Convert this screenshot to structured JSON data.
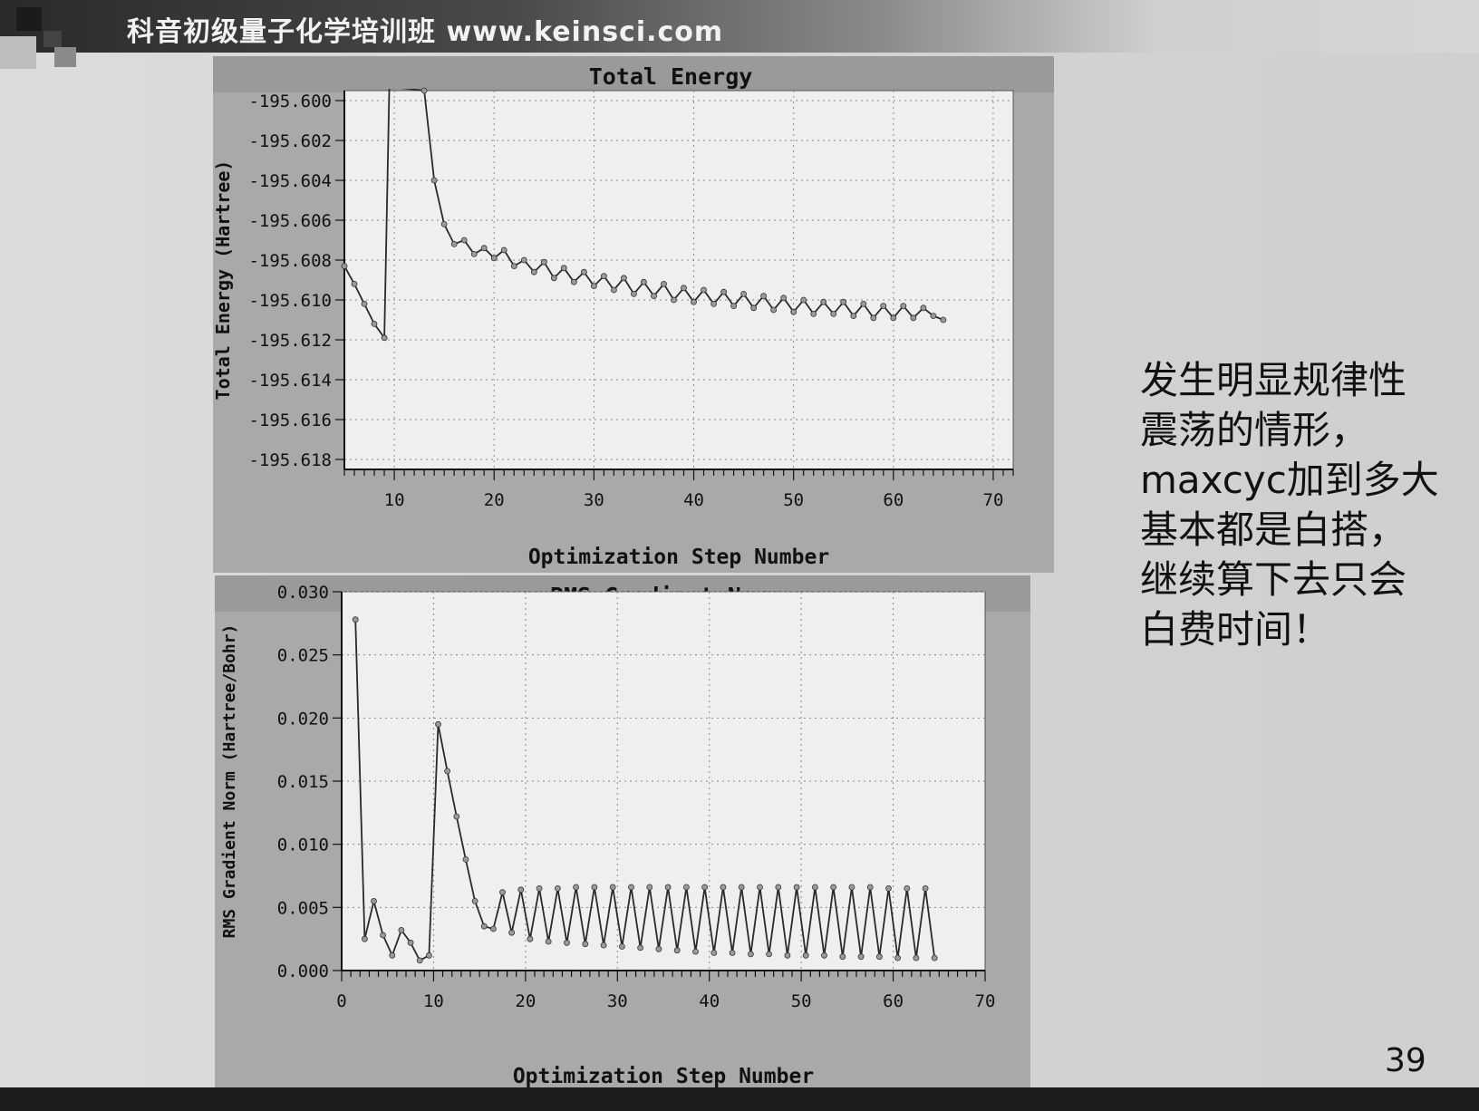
{
  "header": {
    "text": "科音初级量子化学培训班 www.keinsci.com"
  },
  "side_note": {
    "text": "发生明显规律性震荡的情形，maxcyc加到多大基本都是白搭，继续算下去只会白费时间！"
  },
  "page_number": "39",
  "colors": {
    "panel_bg": "#a9a9a7",
    "title_strip": "#9a9a98",
    "plot_bg": "#efefed",
    "line": "#2a2a2a",
    "text": "#111111"
  },
  "chart_data": [
    {
      "type": "line",
      "title": "Total Energy",
      "xlabel": "Optimization Step Number",
      "ylabel": "Total Energy (Hartree)",
      "xlim": [
        5,
        72
      ],
      "ylim": [
        -195.6185,
        -195.5995
      ],
      "xticks": [
        "10",
        "20",
        "30",
        "40",
        "50",
        "60",
        "70"
      ],
      "yticks": [
        "-195.600",
        "-195.602",
        "-195.604",
        "-195.606",
        "-195.608",
        "-195.610",
        "-195.612",
        "-195.614",
        "-195.616",
        "-195.618"
      ],
      "grid": true,
      "legend": "none",
      "series": [
        {
          "x": [
            5,
            6,
            7,
            8,
            9,
            9.5,
            13,
            14,
            15,
            16,
            17,
            18,
            19,
            20,
            21,
            22,
            23,
            24,
            25,
            26,
            27,
            28,
            29,
            30,
            31,
            32,
            33,
            34,
            35,
            36,
            37,
            38,
            39,
            40,
            41,
            42,
            43,
            44,
            45,
            46,
            47,
            48,
            49,
            50,
            51,
            52,
            53,
            54,
            55,
            56,
            57,
            58,
            59,
            60,
            61,
            62,
            63,
            64,
            65
          ],
          "y": [
            -195.6083,
            -195.6092,
            -195.6102,
            -195.6112,
            -195.6119,
            -195.5993,
            -195.5995,
            -195.604,
            -195.6062,
            -195.6072,
            -195.607,
            -195.6077,
            -195.6074,
            -195.6079,
            -195.6075,
            -195.6083,
            -195.608,
            -195.6086,
            -195.6081,
            -195.6089,
            -195.6084,
            -195.6091,
            -195.6086,
            -195.6093,
            -195.6088,
            -195.6095,
            -195.6089,
            -195.6097,
            -195.6091,
            -195.6098,
            -195.6092,
            -195.61,
            -195.6094,
            -195.6101,
            -195.6095,
            -195.6102,
            -195.6096,
            -195.6103,
            -195.6097,
            -195.6104,
            -195.6098,
            -195.6105,
            -195.6099,
            -195.6106,
            -195.61,
            -195.6107,
            -195.6101,
            -195.6107,
            -195.6101,
            -195.6108,
            -195.6102,
            -195.6109,
            -195.6103,
            -195.6109,
            -195.6103,
            -195.6109,
            -195.6104,
            -195.6108,
            -195.611
          ]
        }
      ]
    },
    {
      "type": "line",
      "title": "RMS Gradient Norm",
      "xlabel": "Optimization Step Number",
      "ylabel": "RMS Gradient Norm (Hartree/Bohr)",
      "xlim": [
        0,
        70
      ],
      "ylim": [
        0,
        0.03
      ],
      "xticks": [
        "0",
        "10",
        "20",
        "30",
        "40",
        "50",
        "60",
        "70"
      ],
      "yticks": [
        "0.030",
        "0.025",
        "0.020",
        "0.015",
        "0.010",
        "0.005",
        "0.000"
      ],
      "grid": true,
      "legend": "none",
      "series": [
        {
          "x": [
            1.5,
            2.5,
            3.5,
            4.5,
            5.5,
            6.5,
            7.5,
            8.5,
            9.5,
            10.5,
            11.5,
            12.5,
            13.5,
            14.5,
            15.5,
            16.5,
            17.5,
            18.5,
            19.5,
            20.5,
            21.5,
            22.5,
            23.5,
            24.5,
            25.5,
            26.5,
            27.5,
            28.5,
            29.5,
            30.5,
            31.5,
            32.5,
            33.5,
            34.5,
            35.5,
            36.5,
            37.5,
            38.5,
            39.5,
            40.5,
            41.5,
            42.5,
            43.5,
            44.5,
            45.5,
            46.5,
            47.5,
            48.5,
            49.5,
            50.5,
            51.5,
            52.5,
            53.5,
            54.5,
            55.5,
            56.5,
            57.5,
            58.5,
            59.5,
            60.5,
            61.5,
            62.5,
            63.5,
            64.5
          ],
          "y": [
            0.0278,
            0.0025,
            0.0055,
            0.0028,
            0.0012,
            0.0032,
            0.0022,
            0.0008,
            0.0012,
            0.0195,
            0.0158,
            0.0122,
            0.0088,
            0.0055,
            0.0035,
            0.0033,
            0.0062,
            0.003,
            0.0064,
            0.0025,
            0.0065,
            0.0023,
            0.0065,
            0.0022,
            0.0066,
            0.0021,
            0.0066,
            0.002,
            0.0066,
            0.0019,
            0.0066,
            0.0018,
            0.0066,
            0.0017,
            0.0066,
            0.0016,
            0.0066,
            0.0015,
            0.0066,
            0.0014,
            0.0066,
            0.0014,
            0.0066,
            0.0013,
            0.0066,
            0.0013,
            0.0066,
            0.0012,
            0.0066,
            0.0012,
            0.0066,
            0.0012,
            0.0066,
            0.0011,
            0.0066,
            0.0011,
            0.0066,
            0.0011,
            0.0065,
            0.001,
            0.0065,
            0.001,
            0.0065,
            0.001
          ]
        }
      ]
    }
  ]
}
